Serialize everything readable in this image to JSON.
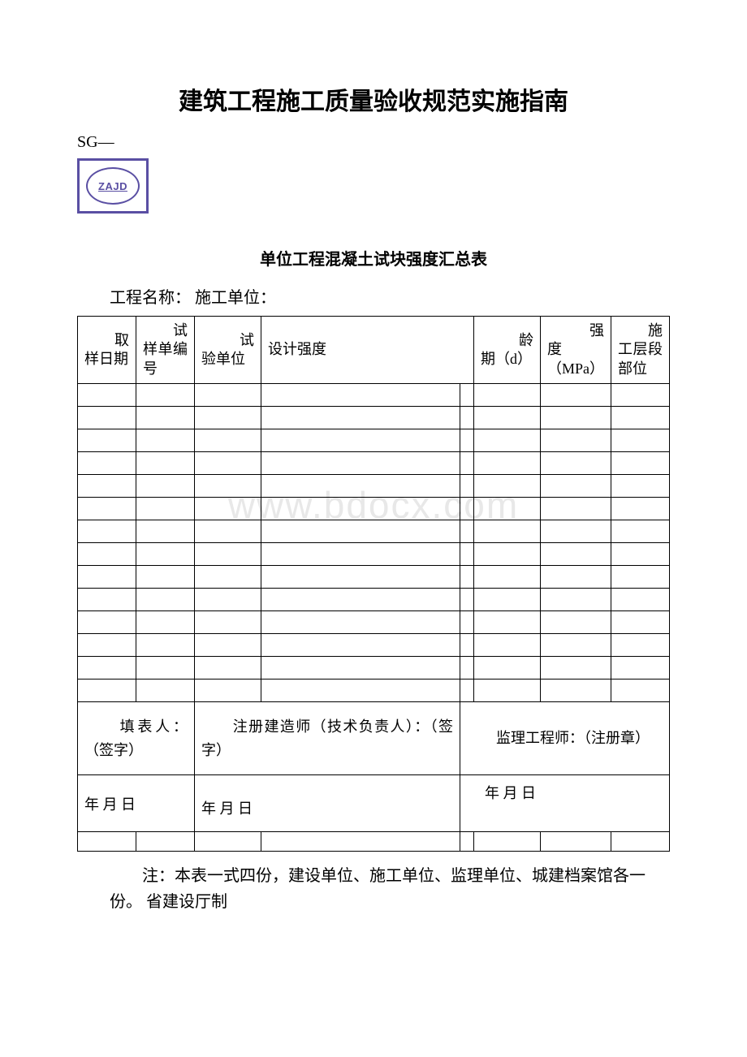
{
  "title": "建筑工程施工质量验收规范实施指南",
  "sg_label": "SG—",
  "logo_text": "ZAJD",
  "sub_title": "单位工程混凝土试块强度汇总表",
  "project_info": "工程名称：  施工单位：",
  "watermark": "www.bdocx.com",
  "table": {
    "headers": {
      "col1": "　　取样日期",
      "col2": "　　试样单编号",
      "col3": "　　试验单位",
      "col4": "设计强度",
      "col5": "　　龄期（d）",
      "col6": "　　强度（MPa）",
      "col7": "　　施工层段部位"
    },
    "empty_row_count": 14,
    "signatures": {
      "cell1": "　　填表人：（签字）",
      "cell2": "　　注册建造师（技术负责人）：（签字）",
      "cell3": "　　监理工程师：（注册章）"
    },
    "dates": {
      "cell1": "年 月 日",
      "cell2": "年 月 日",
      "cell3": "年 月 日"
    }
  },
  "footer_note": "　　注：本表一式四份，建设单位、施工单位、监理单位、城建档案馆各一份。 省建设厅制",
  "colors": {
    "logo_border": "#5a4fa3",
    "text": "#000000",
    "watermark": "#e8e8e8",
    "background": "#ffffff"
  }
}
